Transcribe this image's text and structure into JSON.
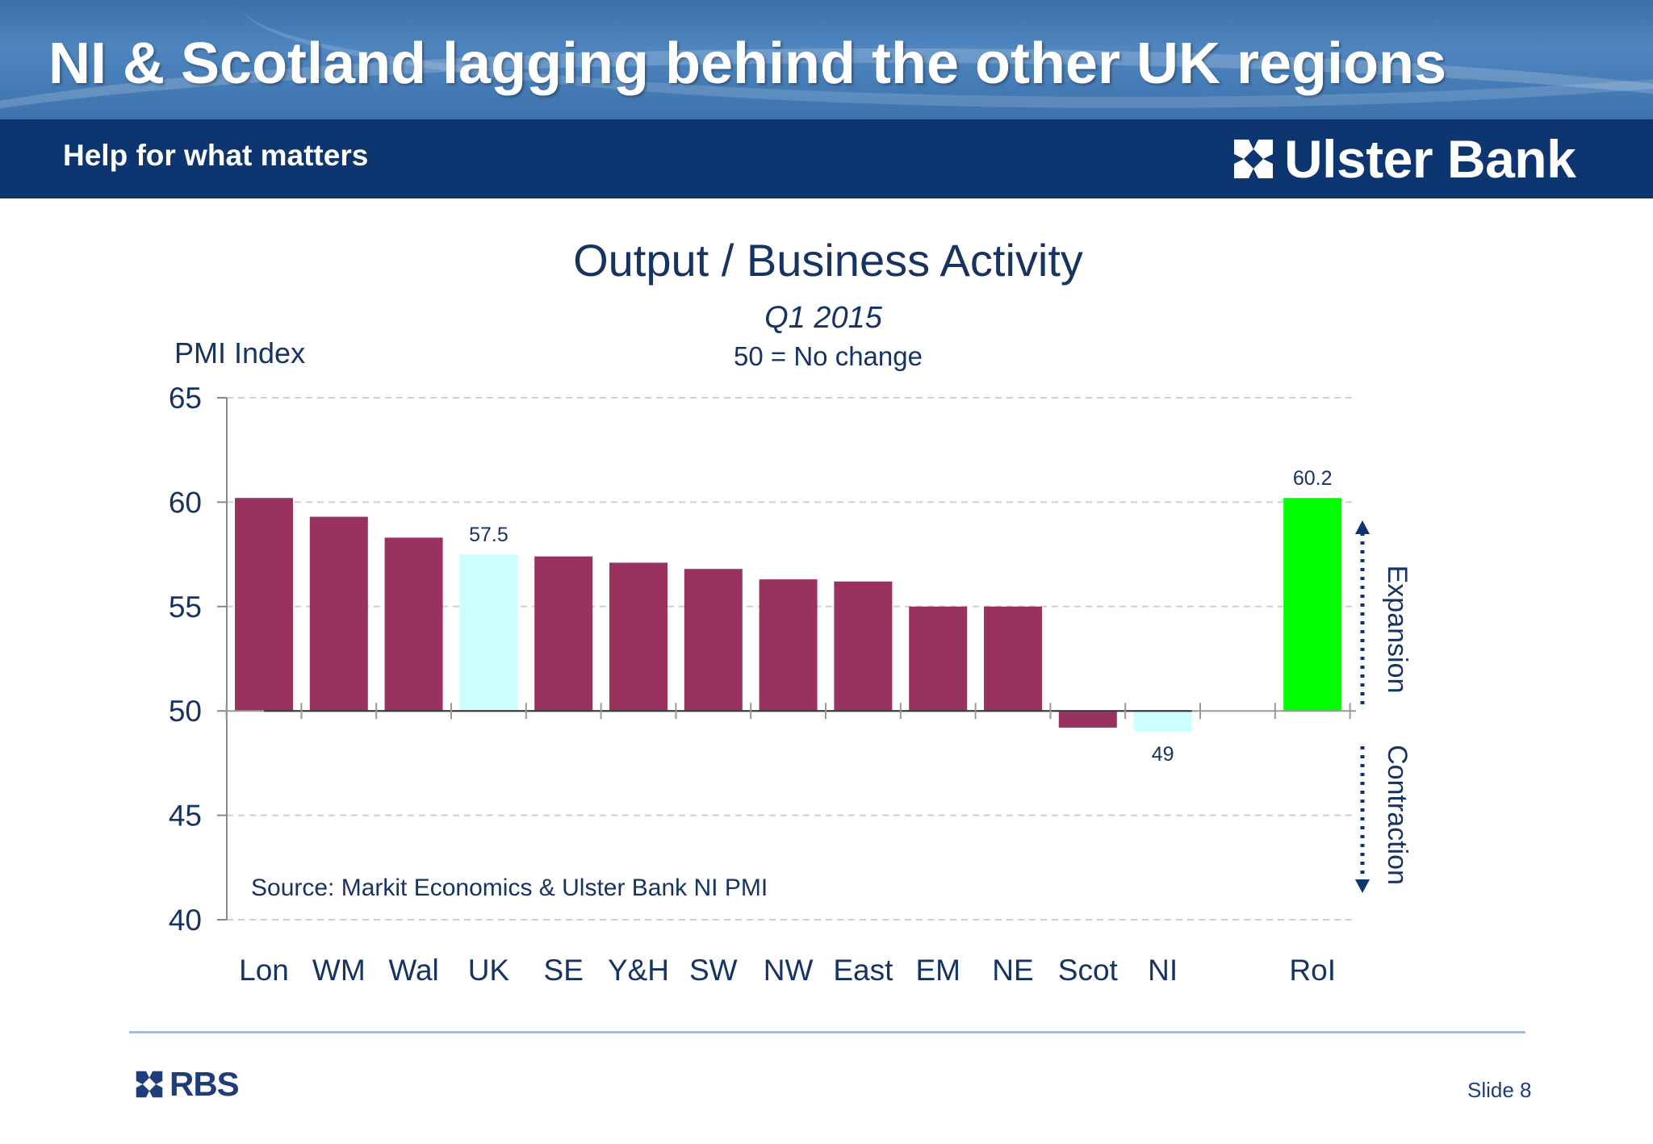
{
  "slide": {
    "title": "NI & Scotland lagging behind the other UK regions",
    "tagline": "Help for what matters",
    "brand": "Ulster Bank",
    "footer_brand": "RBS",
    "slide_number": "Slide 8",
    "colors": {
      "header": "#0d3570",
      "title_text": "#ffffff",
      "footer_line": "#a9bcd4"
    }
  },
  "chart_data": {
    "type": "bar",
    "title": "Output / Business Activity",
    "subtitle": "Q1 2015",
    "note": "50 = No change",
    "ylabel": "PMI Index",
    "source": "Source: Markit Economics & Ulster Bank NI PMI",
    "ylim": [
      40,
      65
    ],
    "yticks": [
      40,
      45,
      50,
      55,
      60,
      65
    ],
    "baseline": 50,
    "grid": true,
    "categories": [
      "Lon",
      "WM",
      "Wal",
      "UK",
      "SE",
      "Y&H",
      "SW",
      "NW",
      "East",
      "EM",
      "NE",
      "Scot",
      "NI",
      "",
      "RoI"
    ],
    "values": [
      60.2,
      59.3,
      58.3,
      57.5,
      57.4,
      57.1,
      56.8,
      56.3,
      56.2,
      55.0,
      55.0,
      49.2,
      49.0,
      null,
      60.2
    ],
    "colors": [
      "#9a3260",
      "#9a3260",
      "#9a3260",
      "#ccffff",
      "#9a3260",
      "#9a3260",
      "#9a3260",
      "#9a3260",
      "#9a3260",
      "#9a3260",
      "#9a3260",
      "#9a3260",
      "#ccffff",
      "",
      "#00ff00"
    ],
    "data_labels": [
      {
        "category": "UK",
        "text": "57.5"
      },
      {
        "category": "NI",
        "text": "49"
      },
      {
        "category": "RoI",
        "text": "60.2"
      }
    ],
    "annotations": {
      "expansion": "Expansion",
      "contraction": "Contraction"
    }
  }
}
